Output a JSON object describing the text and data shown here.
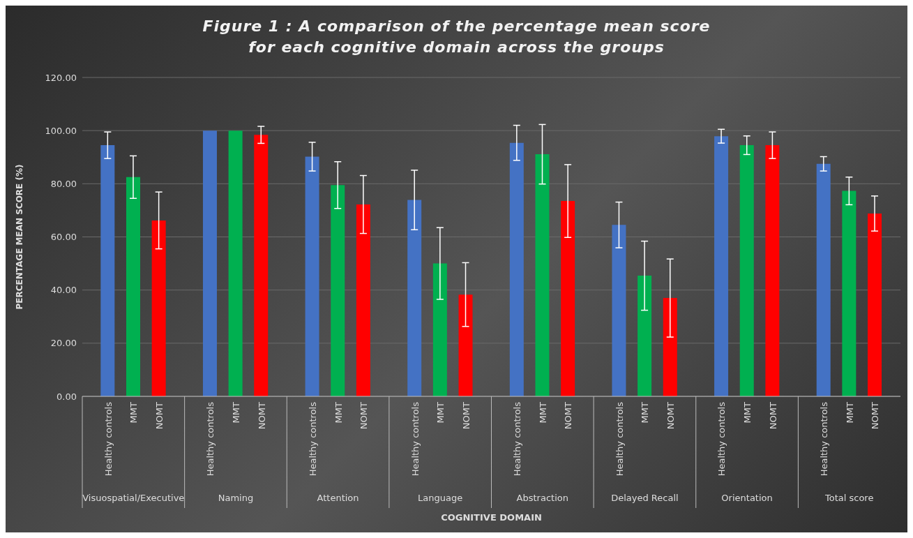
{
  "chart_data": {
    "type": "bar",
    "title": "Figure 1 : A comparison of the percentage mean score for each cognitive domain across the groups",
    "xlabel": "COGNITIVE DOMAIN",
    "ylabel": "PERCENTAGE MEAN SCORE (%)",
    "categories": [
      "Healthy controls",
      "MMT",
      "NOMT",
      "Healthy controls",
      "MMT",
      "NOMT",
      "Healthy controls",
      "MMT",
      "NOMT",
      "Healthy controls",
      "MMT",
      "NOMT",
      "Healthy controls",
      "MMT",
      "NOMT",
      "Healthy controls",
      "MMT",
      "NOMT",
      "Healthy controls",
      "MMT",
      "NOMT",
      "Healthy controls",
      "MMT",
      "NOMT"
    ],
    "values": [
      94.5,
      82.5,
      66.2,
      100,
      100,
      98.4,
      90.2,
      79.5,
      72.2,
      73.9,
      50.0,
      38.3,
      95.4,
      91.1,
      73.5,
      64.5,
      45.4,
      37.0,
      97.9,
      94.5,
      94.5,
      87.5,
      77.3,
      68.8
    ],
    "errors": [
      5,
      8,
      10.7,
      0,
      0,
      3.2,
      5.4,
      8.8,
      10.9,
      11.2,
      13.5,
      12,
      6.6,
      11.2,
      13.7,
      8.6,
      13,
      14.7,
      2.6,
      3.5,
      5,
      2.7,
      5.2,
      6.6
    ],
    "colors": [
      "#4472c4",
      "#00b050",
      "#ff0000",
      "#4472c4",
      "#00b050",
      "#ff0000",
      "#4472c4",
      "#00b050",
      "#ff0000",
      "#4472c4",
      "#00b050",
      "#ff0000",
      "#4472c4",
      "#00b050",
      "#ff0000",
      "#4472c4",
      "#00b050",
      "#ff0000",
      "#4472c4",
      "#00b050",
      "#ff0000",
      "#4472c4",
      "#00b050",
      "#ff0000"
    ],
    "annotations": [
      "Visuospatial/Executive",
      "Naming",
      "Attention",
      "Language",
      "Abstraction",
      "Delayed Recall",
      "Orientation",
      "Total score"
    ],
    "ylim": [
      0,
      120
    ],
    "yticks": [
      {
        "value": 0,
        "label": "0.00"
      },
      {
        "value": 20,
        "label": "20.00"
      },
      {
        "value": 40,
        "label": "40.00"
      },
      {
        "value": 60,
        "label": "60.00"
      },
      {
        "value": 80,
        "label": "80.00"
      },
      {
        "value": 100,
        "label": "100.00"
      },
      {
        "value": 120,
        "label": "120.00"
      }
    ],
    "grid": "y"
  }
}
